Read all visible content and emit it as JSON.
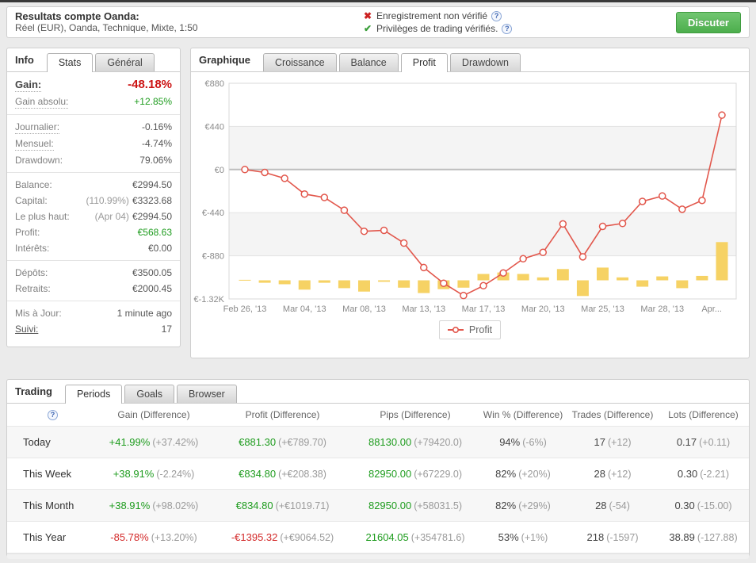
{
  "top_bar": {
    "title": "Resultats compte Oanda:",
    "subtitle": "Réel (EUR), Oanda, Technique, Mixte, 1:50",
    "badges": [
      {
        "icon": "x-mark",
        "text": "Enregistrement non vérifié",
        "help_icon": "?"
      },
      {
        "icon": "check-mark",
        "text": "Privilèges de trading vérifiés.",
        "help_icon": "?"
      }
    ],
    "chat_button": "Discuter"
  },
  "info_panel": {
    "title": "Info",
    "tabs": [
      {
        "label": "Stats",
        "active": true
      },
      {
        "label": "Général",
        "active": false
      }
    ],
    "sections": [
      [
        {
          "label": "Gain:",
          "value": "-48.18%",
          "color": "red",
          "label_style": "dotted",
          "emphasis": true
        },
        {
          "label": "Gain absolu:",
          "value": "+12.85%",
          "color": "green",
          "label_style": "dotted"
        }
      ],
      [
        {
          "label": "Journalier:",
          "value": "-0.16%",
          "label_style": "dotted"
        },
        {
          "label": "Mensuel:",
          "value": "-4.74%",
          "label_style": "dotted"
        },
        {
          "label": "Drawdown:",
          "value": "79.06%"
        }
      ],
      [
        {
          "label": "Balance:",
          "value": "€2994.50"
        },
        {
          "label": "Capital:",
          "pre": "(110.99%)",
          "value": "€3323.68"
        },
        {
          "label": "Le plus haut:",
          "pre": "(Apr 04)",
          "value": "€2994.50"
        },
        {
          "label": "Profit:",
          "value": "€568.63",
          "color": "green"
        },
        {
          "label": "Intérêts:",
          "value": "€0.00"
        }
      ],
      [
        {
          "label": "Dépôts:",
          "value": "€3500.05"
        },
        {
          "label": "Retraits:",
          "value": "€2000.45"
        }
      ],
      [
        {
          "label": "Mis à Jour:",
          "value": "1 minute ago"
        },
        {
          "label": "Suivi:",
          "value": "17",
          "label_style": "link"
        }
      ]
    ]
  },
  "chart_panel": {
    "title": "Graphique",
    "tabs": [
      {
        "label": "Croissance",
        "active": false
      },
      {
        "label": "Balance",
        "active": false
      },
      {
        "label": "Profit",
        "active": true
      },
      {
        "label": "Drawdown",
        "active": false
      }
    ],
    "chart_data": {
      "type": "line",
      "title": "Profit",
      "ylim": [
        -1320,
        880
      ],
      "y_ticks": [
        {
          "v": 880,
          "label": "€880"
        },
        {
          "v": 440,
          "label": "€440"
        },
        {
          "v": 0,
          "label": "€0"
        },
        {
          "v": -440,
          "label": "€-440"
        },
        {
          "v": -880,
          "label": "€-880"
        },
        {
          "v": -1320,
          "label": "€-1.32K"
        }
      ],
      "x_tick_labels": [
        "Feb 26, '13",
        "Mar 04, '13",
        "Mar 08, '13",
        "Mar 13, '13",
        "Mar 17, '13",
        "Mar 20, '13",
        "Mar 25, '13",
        "Mar 28, '13",
        "Apr..."
      ],
      "x_tick_indices": [
        0,
        3,
        6,
        9,
        12,
        15,
        18,
        21,
        24
      ],
      "series": [
        {
          "name": "Profit",
          "color": "#e2574c",
          "values": [
            0,
            -30,
            -90,
            -250,
            -285,
            -415,
            -630,
            -620,
            -750,
            -1000,
            -1160,
            -1285,
            -1185,
            -1055,
            -910,
            -845,
            -555,
            -890,
            -580,
            -550,
            -325,
            -270,
            -405,
            -315,
            555
          ]
        }
      ],
      "bars": {
        "name": "daily-change-bars",
        "color": "#f6d264",
        "baseline": -1130,
        "values": [
          5,
          -25,
          -40,
          -95,
          -25,
          -80,
          -115,
          -15,
          -75,
          -130,
          -90,
          -75,
          65,
          80,
          65,
          30,
          115,
          -160,
          130,
          30,
          -65,
          40,
          -80,
          45,
          390
        ]
      },
      "legend": [
        {
          "label": "Profit",
          "color": "#e2574c"
        }
      ],
      "band_color": "#f4f4f4",
      "grid_color": "#e3e3e3",
      "zero_line_color": "#bdbdbd"
    }
  },
  "trading_panel": {
    "title": "Trading",
    "tabs": [
      {
        "label": "Periods",
        "active": true
      },
      {
        "label": "Goals",
        "active": false
      },
      {
        "label": "Browser",
        "active": false
      }
    ],
    "table": {
      "header_help_icon": "?",
      "columns": [
        "Gain (Difference)",
        "Profit (Difference)",
        "Pips (Difference)",
        "Win % (Difference)",
        "Trades (Difference)",
        "Lots (Difference)"
      ],
      "rows": [
        {
          "label": "Today",
          "cells": [
            {
              "v": "+41.99%",
              "d": "(+37.42%)",
              "c": "green"
            },
            {
              "v": "€881.30",
              "d": "(+€789.70)",
              "c": "green"
            },
            {
              "v": "88130.00",
              "d": "(+79420.0)",
              "c": "green"
            },
            {
              "v": "94%",
              "d": "(-6%)",
              "c": "dark"
            },
            {
              "v": "17",
              "d": "(+12)",
              "c": "dark"
            },
            {
              "v": "0.17",
              "d": "(+0.11)",
              "c": "dark"
            }
          ]
        },
        {
          "label": "This Week",
          "cells": [
            {
              "v": "+38.91%",
              "d": "(-2.24%)",
              "c": "green"
            },
            {
              "v": "€834.80",
              "d": "(+€208.38)",
              "c": "green"
            },
            {
              "v": "82950.00",
              "d": "(+67229.0)",
              "c": "green"
            },
            {
              "v": "82%",
              "d": "(+20%)",
              "c": "dark"
            },
            {
              "v": "28",
              "d": "(+12)",
              "c": "dark"
            },
            {
              "v": "0.30",
              "d": "(-2.21)",
              "c": "dark"
            }
          ]
        },
        {
          "label": "This Month",
          "cells": [
            {
              "v": "+38.91%",
              "d": "(+98.02%)",
              "c": "green"
            },
            {
              "v": "€834.80",
              "d": "(+€1019.71)",
              "c": "green"
            },
            {
              "v": "82950.00",
              "d": "(+58031.5)",
              "c": "green"
            },
            {
              "v": "82%",
              "d": "(+29%)",
              "c": "dark"
            },
            {
              "v": "28",
              "d": "(-54)",
              "c": "dark"
            },
            {
              "v": "0.30",
              "d": "(-15.00)",
              "c": "dark"
            }
          ]
        },
        {
          "label": "This Year",
          "cells": [
            {
              "v": "-85.78%",
              "d": "(+13.20%)",
              "c": "red"
            },
            {
              "v": "-€1395.32",
              "d": "(+€9064.52)",
              "c": "red"
            },
            {
              "v": "21604.05",
              "d": "(+354781.6)",
              "c": "green"
            },
            {
              "v": "53%",
              "d": "(+1%)",
              "c": "dark"
            },
            {
              "v": "218",
              "d": "(-1597)",
              "c": "dark"
            },
            {
              "v": "38.89",
              "d": "(-127.88)",
              "c": "dark"
            }
          ]
        }
      ]
    }
  }
}
